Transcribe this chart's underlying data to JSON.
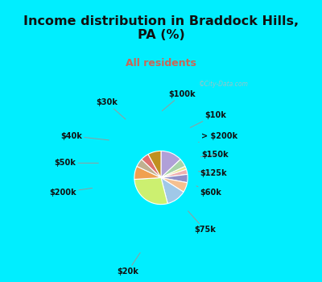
{
  "title": "Income distribution in Braddock Hills,\nPA (%)",
  "subtitle": "All residents",
  "title_color": "#111111",
  "subtitle_color": "#cc6655",
  "bg_cyan": "#00eeff",
  "bg_chart": "#e0f5e8",
  "labels_cw": [
    "$100k",
    "$10k",
    "> $200k",
    "$150k",
    "$125k",
    "$60k",
    "$75k",
    "$20k",
    "$200k",
    "$50k",
    "$40k",
    "$30k"
  ],
  "values_cw": [
    13,
    5,
    2,
    3,
    5,
    6,
    12,
    28,
    8,
    5,
    5,
    8
  ],
  "colors_cw": [
    "#b0a0d8",
    "#a8d4a8",
    "#e8e890",
    "#f0b0b0",
    "#9090c8",
    "#f5c090",
    "#a0c8e8",
    "#ccf070",
    "#f0a050",
    "#c0b090",
    "#e07070",
    "#c09020"
  ]
}
